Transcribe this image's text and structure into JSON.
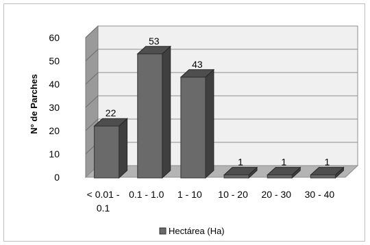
{
  "chart_data": {
    "type": "bar",
    "title": "",
    "xlabel": "",
    "ylabel": "N° de Parches",
    "categories": [
      [
        "< 0.01 -",
        "0.1"
      ],
      [
        "0.1 - 1.0"
      ],
      [
        "1 - 10"
      ],
      [
        "10 - 20"
      ],
      [
        "20 - 30"
      ],
      [
        "30 - 40"
      ]
    ],
    "series": [
      {
        "name": "Hectárea (Ha)",
        "values": [
          22,
          53,
          43,
          1,
          1,
          1
        ],
        "color": "#6a6a6a"
      }
    ],
    "ylim": [
      0,
      60
    ],
    "yticks": [
      0,
      10,
      20,
      30,
      40,
      50,
      60
    ],
    "grid": true,
    "three_d": true,
    "legend_position": "bottom"
  }
}
